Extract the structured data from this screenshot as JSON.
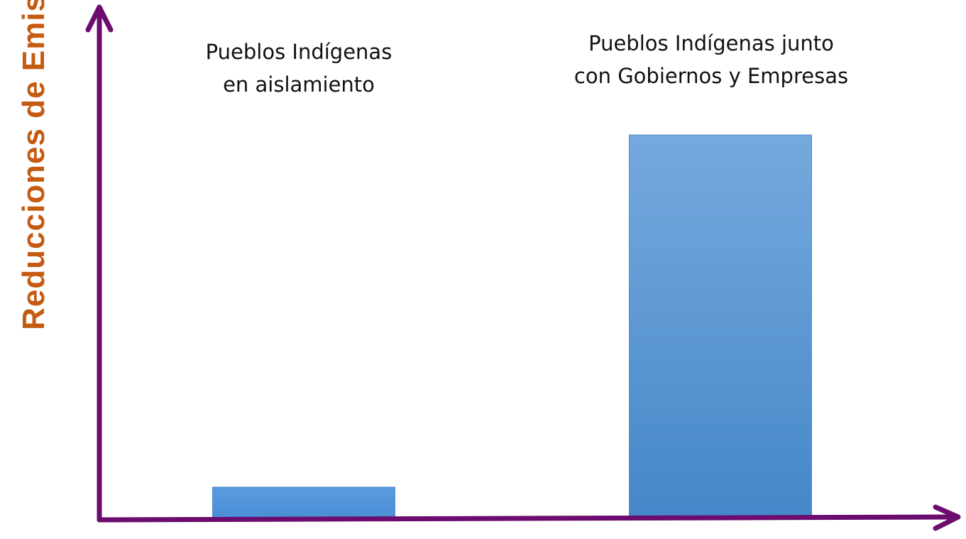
{
  "chart_data": {
    "type": "bar",
    "categories": [
      [
        "Pueblos Indígenas",
        "en aislamiento"
      ],
      [
        "Pueblos Indígenas junto",
        "con Gobiernos y Empresas"
      ]
    ],
    "values": [
      8,
      100
    ],
    "ylabel": "Reducciones de Emisiones",
    "xlabel": "",
    "ylim": [
      0,
      130
    ],
    "grid": false,
    "axis_ticks": false
  },
  "colors": {
    "axis": "#6b0c6e",
    "ylabel": "#c55a11",
    "bar_top": "#75a9dd",
    "bar_bottom": "#4587c9",
    "bar_small_top": "#5a9be0",
    "bar_small_bottom": "#4a8fd6"
  }
}
